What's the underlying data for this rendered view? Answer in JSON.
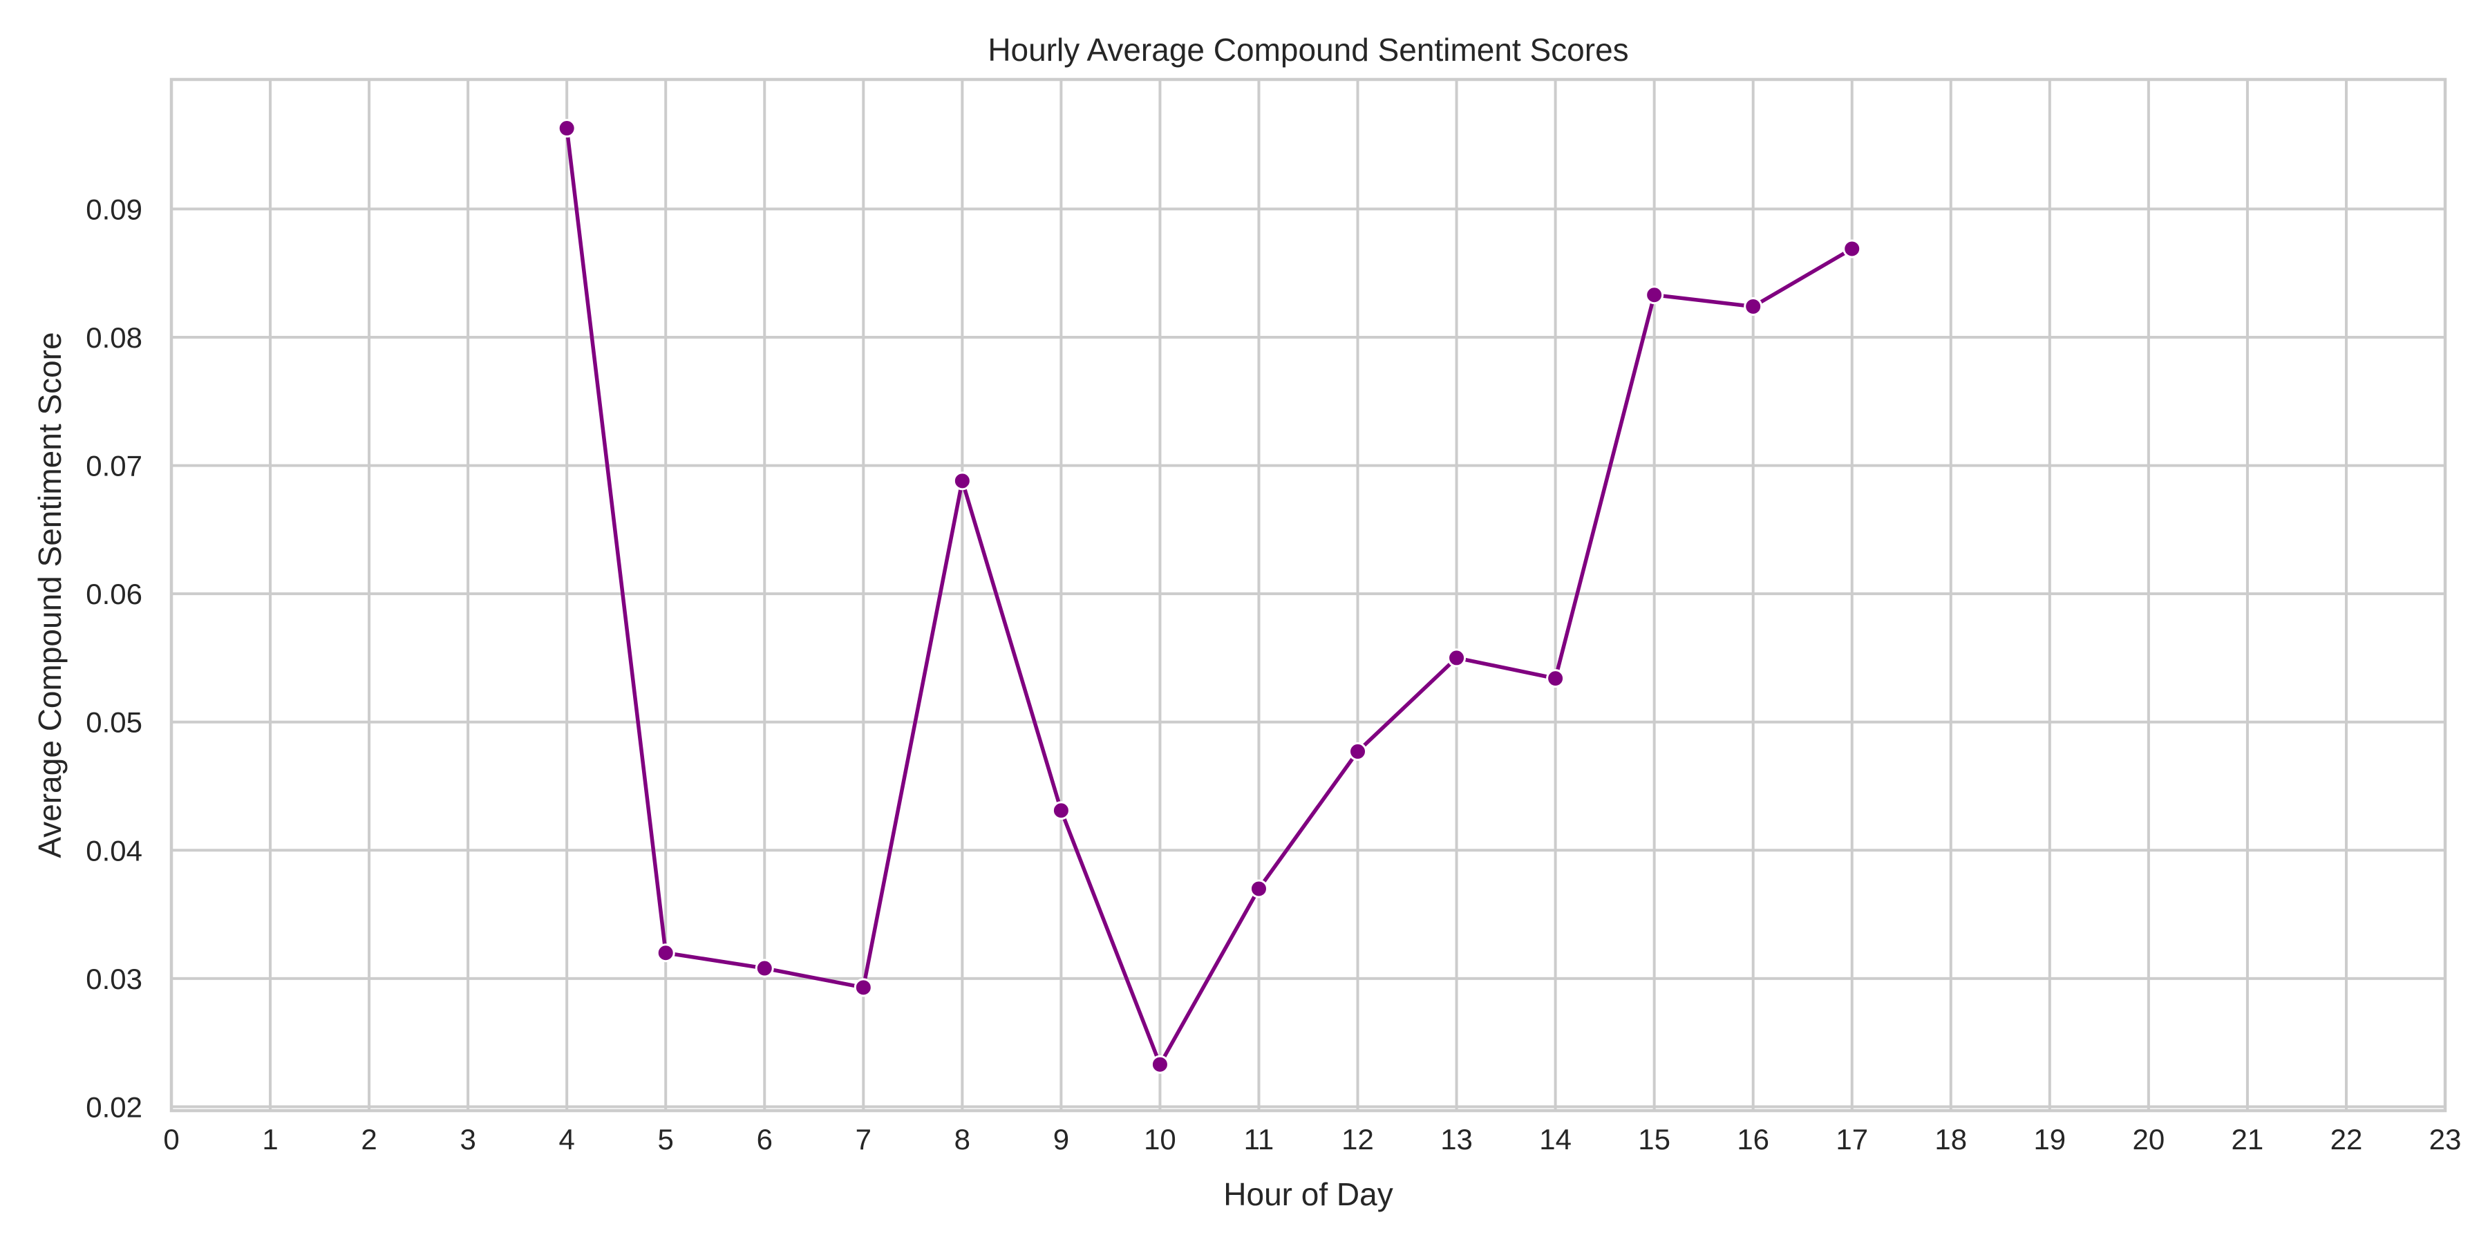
{
  "colors": {
    "series": "#800080",
    "grid": "#cccccc",
    "text": "#262626"
  },
  "chart_data": {
    "type": "line",
    "title": "Hourly Average Compound Sentiment Scores",
    "xlabel": "Hour of Day",
    "ylabel": "Average Compound Sentiment Score",
    "grid": true,
    "legend": "none",
    "xlim": [
      0,
      23
    ],
    "ylim": [
      0.0197,
      0.1001
    ],
    "x_ticks": [
      0,
      1,
      2,
      3,
      4,
      5,
      6,
      7,
      8,
      9,
      10,
      11,
      12,
      13,
      14,
      15,
      16,
      17,
      18,
      19,
      20,
      21,
      22,
      23
    ],
    "y_ticks": [
      0.02,
      0.03,
      0.04,
      0.05,
      0.06,
      0.07,
      0.08,
      0.09
    ],
    "y_tick_labels": [
      "0.02",
      "0.03",
      "0.04",
      "0.05",
      "0.06",
      "0.07",
      "0.08",
      "0.09"
    ],
    "series": [
      {
        "x": [
          4,
          5,
          6,
          7,
          8,
          9,
          10,
          11,
          12,
          13,
          14,
          15,
          16,
          17
        ],
        "values": [
          0.0963,
          0.032,
          0.0308,
          0.0293,
          0.0688,
          0.0431,
          0.0233,
          0.037,
          0.0477,
          0.055,
          0.0534,
          0.0833,
          0.0824,
          0.0869
        ],
        "marker": "circle"
      }
    ]
  }
}
